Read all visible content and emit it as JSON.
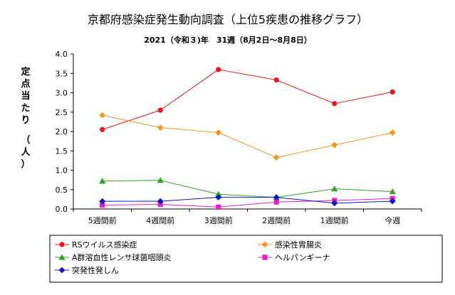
{
  "chart_data": {
    "type": "line",
    "title": "京都府感染症発生動向調査（上位5疾患の推移グラフ）",
    "subtitle": "2021（令和３)年　31週（8月2日～8月8日）",
    "ylabel_chars": [
      "定",
      "点",
      "当",
      "た",
      "り",
      "（",
      "人",
      "）"
    ],
    "xlabel": "",
    "categories": [
      "5週間前",
      "4週間前",
      "3週間前",
      "2週間前",
      "1週間前",
      "今週"
    ],
    "ylim": [
      0,
      4.0
    ],
    "yticks": [
      "0.0",
      "0.5",
      "1.0",
      "1.5",
      "2.0",
      "2.5",
      "3.0",
      "3.5",
      "4.0"
    ],
    "grid": false,
    "legend_position": "bottom",
    "series": [
      {
        "name": "RSウイルス感染症",
        "color": "#e8151b",
        "marker": "circle",
        "values": [
          2.05,
          2.55,
          3.6,
          3.33,
          2.72,
          3.02
        ]
      },
      {
        "name": "感染性胃腸炎",
        "color": "#f7931e",
        "marker": "diamond",
        "values": [
          2.42,
          2.1,
          1.97,
          1.33,
          1.65,
          1.97
        ]
      },
      {
        "name": "A群溶血性レンサ球菌咽頭炎",
        "color": "#33a02c",
        "marker": "triangle",
        "values": [
          0.72,
          0.74,
          0.38,
          0.3,
          0.52,
          0.45
        ]
      },
      {
        "name": "ヘルパンギーナ",
        "color": "#e020c8",
        "marker": "square",
        "values": [
          0.1,
          0.12,
          0.05,
          0.18,
          0.22,
          0.27
        ]
      },
      {
        "name": "突発性発しん",
        "color": "#0a14c8",
        "marker": "diamond",
        "values": [
          0.2,
          0.2,
          0.3,
          0.3,
          0.15,
          0.2
        ]
      }
    ]
  }
}
